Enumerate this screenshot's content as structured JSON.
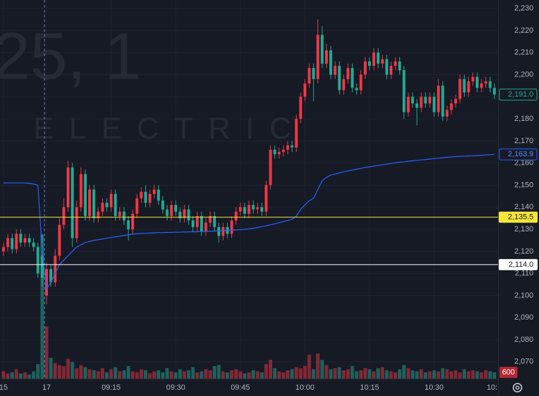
{
  "chart_data": {
    "type": "candlestick",
    "watermark": {
      "symbol": "25, 1",
      "description": "ELECTRIC"
    },
    "up_color": "#f23645",
    "down_color": "#22ab94",
    "ylim": [
      2062.4,
      2233.8
    ],
    "yticks": [
      {
        "value": 2070,
        "label": "2,070"
      },
      {
        "value": 2080,
        "label": "2,080"
      },
      {
        "value": 2090,
        "label": "2,090"
      },
      {
        "value": 2100,
        "label": "2,100"
      },
      {
        "value": 2110,
        "label": "2,110"
      },
      {
        "value": 2120,
        "label": "2,120"
      },
      {
        "value": 2130,
        "label": "2,130"
      },
      {
        "value": 2140,
        "label": "2,140"
      },
      {
        "value": 2150,
        "label": "2,150"
      },
      {
        "value": 2160,
        "label": "2,160"
      },
      {
        "value": 2170,
        "label": "2,170"
      },
      {
        "value": 2180,
        "label": "2,180"
      },
      {
        "value": 2190,
        "label": "2,190"
      },
      {
        "value": 2200,
        "label": "2,200"
      },
      {
        "value": 2210,
        "label": "2,210"
      },
      {
        "value": 2220,
        "label": "2,220"
      },
      {
        "value": 2230,
        "label": "2,230"
      }
    ],
    "xticks": [
      {
        "value": 0,
        "label": "15"
      },
      {
        "value": 10,
        "label": "17"
      },
      {
        "value": 25,
        "label": "09:15"
      },
      {
        "value": 40,
        "label": "09:30"
      },
      {
        "value": 55,
        "label": "09:45"
      },
      {
        "value": 70,
        "label": "10:00"
      },
      {
        "value": 85,
        "label": "10:15"
      },
      {
        "value": 100,
        "label": "10:30"
      },
      {
        "value": 115,
        "label": "10:"
      }
    ],
    "session_break": 10,
    "open": [
      2120,
      2122,
      2126,
      2121,
      2128,
      2124,
      2126,
      2124,
      2122,
      2118,
      2100,
      2112,
      2106,
      2118,
      2132,
      2140,
      2158,
      2126,
      2140,
      2155,
      2136,
      2148,
      2135,
      2138,
      2142,
      2140,
      2146,
      2136,
      2138,
      2134,
      2130,
      2137,
      2144,
      2147,
      2142,
      2146,
      2148,
      2143,
      2139,
      2136,
      2141,
      2138,
      2135,
      2139,
      2134,
      2131,
      2136,
      2129,
      2133,
      2136,
      2131,
      2127,
      2131,
      2128,
      2134,
      2138,
      2140,
      2137,
      2141,
      2139,
      2140,
      2138,
      2150,
      2166,
      2164,
      2165,
      2166,
      2168,
      2167,
      2180,
      2190,
      2196,
      2203,
      2198,
      2218,
      2205,
      2211,
      2200,
      2204,
      2193,
      2198,
      2203,
      2194,
      2193,
      2200,
      2206,
      2204,
      2210,
      2205,
      2207,
      2200,
      2204,
      2206,
      2202,
      2183,
      2190,
      2187,
      2185,
      2190,
      2187,
      2190,
      2183,
      2195,
      2181,
      2184,
      2187,
      2189,
      2198,
      2192,
      2197,
      2199,
      2194,
      2196,
      2197,
      2194
    ],
    "high": [
      2124,
      2128,
      2128,
      2130,
      2130,
      2128,
      2128,
      2126,
      2124,
      2128,
      2115,
      2114,
      2121,
      2135,
      2144,
      2161,
      2160,
      2143,
      2158,
      2157,
      2150,
      2150,
      2140,
      2144,
      2144,
      2148,
      2148,
      2140,
      2140,
      2136,
      2139,
      2146,
      2149,
      2150,
      2148,
      2150,
      2150,
      2145,
      2141,
      2143,
      2143,
      2140,
      2141,
      2141,
      2136,
      2138,
      2138,
      2135,
      2138,
      2138,
      2133,
      2133,
      2133,
      2136,
      2140,
      2142,
      2142,
      2143,
      2143,
      2142,
      2142,
      2152,
      2168,
      2168,
      2167,
      2168,
      2170,
      2170,
      2182,
      2192,
      2198,
      2205,
      2205,
      2225,
      2222,
      2214,
      2213,
      2206,
      2206,
      2200,
      2205,
      2205,
      2196,
      2202,
      2208,
      2208,
      2212,
      2212,
      2209,
      2209,
      2206,
      2208,
      2208,
      2204,
      2192,
      2192,
      2189,
      2192,
      2192,
      2192,
      2192,
      2198,
      2197,
      2186,
      2189,
      2191,
      2200,
      2200,
      2199,
      2201,
      2201,
      2198,
      2199,
      2199,
      2196
    ],
    "low": [
      2118,
      2120,
      2119,
      2119,
      2122,
      2122,
      2122,
      2120,
      2108,
      2104,
      2096,
      2104,
      2104,
      2116,
      2130,
      2138,
      2122,
      2124,
      2138,
      2134,
      2134,
      2133,
      2133,
      2136,
      2138,
      2138,
      2134,
      2134,
      2132,
      2125,
      2128,
      2135,
      2142,
      2140,
      2140,
      2144,
      2141,
      2137,
      2134,
      2134,
      2136,
      2133,
      2133,
      2132,
      2129,
      2129,
      2127,
      2127,
      2131,
      2129,
      2124,
      2125,
      2126,
      2126,
      2132,
      2136,
      2135,
      2135,
      2137,
      2137,
      2136,
      2136,
      2148,
      2162,
      2162,
      2163,
      2164,
      2165,
      2165,
      2178,
      2188,
      2194,
      2188,
      2196,
      2203,
      2203,
      2198,
      2198,
      2191,
      2191,
      2196,
      2192,
      2191,
      2191,
      2198,
      2202,
      2202,
      2203,
      2203,
      2198,
      2198,
      2202,
      2200,
      2180,
      2181,
      2185,
      2177,
      2183,
      2185,
      2185,
      2181,
      2181,
      2179,
      2179,
      2182,
      2185,
      2187,
      2190,
      2190,
      2195,
      2192,
      2192,
      2194,
      2192,
      2189
    ],
    "close": [
      2122,
      2126,
      2121,
      2128,
      2124,
      2126,
      2124,
      2122,
      2110,
      2108,
      2112,
      2106,
      2118,
      2132,
      2140,
      2158,
      2126,
      2140,
      2155,
      2136,
      2148,
      2135,
      2138,
      2142,
      2140,
      2146,
      2136,
      2138,
      2134,
      2130,
      2137,
      2144,
      2147,
      2142,
      2146,
      2148,
      2143,
      2139,
      2136,
      2141,
      2138,
      2135,
      2139,
      2134,
      2131,
      2136,
      2129,
      2133,
      2136,
      2131,
      2127,
      2131,
      2128,
      2134,
      2138,
      2140,
      2137,
      2141,
      2139,
      2140,
      2138,
      2150,
      2166,
      2164,
      2165,
      2166,
      2168,
      2167,
      2180,
      2190,
      2196,
      2203,
      2198,
      2218,
      2205,
      2211,
      2200,
      2204,
      2193,
      2198,
      2203,
      2194,
      2193,
      2200,
      2206,
      2204,
      2210,
      2205,
      2207,
      2200,
      2204,
      2206,
      2202,
      2183,
      2190,
      2187,
      2185,
      2190,
      2187,
      2190,
      2183,
      2195,
      2181,
      2184,
      2187,
      2189,
      2198,
      2192,
      2197,
      2199,
      2194,
      2196,
      2197,
      2194,
      2191
    ],
    "volume": [
      700,
      500,
      600,
      900,
      500,
      600,
      400,
      700,
      1400,
      13800,
      5000,
      2000,
      1500,
      1300,
      1200,
      1900,
      1600,
      1000,
      1300,
      1100,
      900,
      800,
      700,
      1000,
      600,
      900,
      1100,
      700,
      800,
      1200,
      700,
      600,
      900,
      800,
      500,
      700,
      800,
      600,
      1000,
      700,
      600,
      900,
      700,
      800,
      1100,
      600,
      700,
      900,
      800,
      1200,
      1300,
      700,
      600,
      800,
      900,
      700,
      500,
      600,
      800,
      700,
      600,
      1400,
      1800,
      1000,
      700,
      600,
      800,
      900,
      1100,
      1000,
      1200,
      2300,
      900,
      2400,
      1800,
      1300,
      900,
      1000,
      1100,
      800,
      900,
      1200,
      700,
      800,
      1000,
      900,
      700,
      1000,
      1100,
      800,
      700,
      600,
      900,
      1300,
      1000,
      800,
      700,
      900,
      600,
      700,
      800,
      700,
      1000,
      900,
      700,
      800,
      600,
      900,
      700,
      800,
      700,
      600,
      800,
      700,
      600
    ],
    "ma": {
      "color": "#2962ff",
      "values": [
        2151,
        2151,
        2151,
        2151,
        2151,
        2151,
        2150.8,
        2150.5,
        2150,
        2120,
        2103,
        2106,
        2110,
        2114,
        2116,
        2118,
        2120,
        2122,
        2123,
        2124,
        2124.5,
        2125,
        2125.3,
        2125.6,
        2126,
        2126.3,
        2126.6,
        2126.9,
        2127.2,
        2127.5,
        2127.8,
        2128,
        2128.1,
        2128.2,
        2128.3,
        2128.4,
        2128.5,
        2128.5,
        2128.6,
        2128.6,
        2128.7,
        2128.7,
        2128.8,
        2128.8,
        2128.9,
        2128.9,
        2129,
        2129,
        2129.1,
        2129.2,
        2129.3,
        2129.4,
        2129.5,
        2129.6,
        2129.7,
        2129.8,
        2130,
        2130.2,
        2130.5,
        2130.8,
        2131.2,
        2131.6,
        2132,
        2132.5,
        2133,
        2133.5,
        2134,
        2134.5,
        2136,
        2139,
        2141,
        2143,
        2144,
        2148,
        2152,
        2153.5,
        2154.5,
        2155,
        2155.5,
        2156,
        2156.4,
        2156.8,
        2157.2,
        2157.6,
        2158,
        2158.3,
        2158.6,
        2158.9,
        2159.2,
        2159.5,
        2159.8,
        2160.1,
        2160.4,
        2160.6,
        2160.8,
        2161,
        2161.2,
        2161.4,
        2161.6,
        2161.8,
        2162,
        2162.2,
        2162.4,
        2162.6,
        2162.8,
        2162.9,
        2163,
        2163.1,
        2163.2,
        2163.3,
        2163.4,
        2163.5,
        2163.6,
        2163.8,
        2163.9
      ],
      "last_label": {
        "value": 2163.9,
        "label": "2,163.9"
      }
    },
    "price_lines": [
      {
        "value": 2135.5,
        "label": "2,135.5",
        "color": "#f5e63b"
      },
      {
        "value": 2114.0,
        "label": "2,114.0",
        "color": "#ffffff"
      }
    ],
    "last_price": {
      "value": 2191.0,
      "label": "2,191.0"
    },
    "volume_label": {
      "value": 600,
      "label": "600",
      "color": "#b22833"
    }
  }
}
